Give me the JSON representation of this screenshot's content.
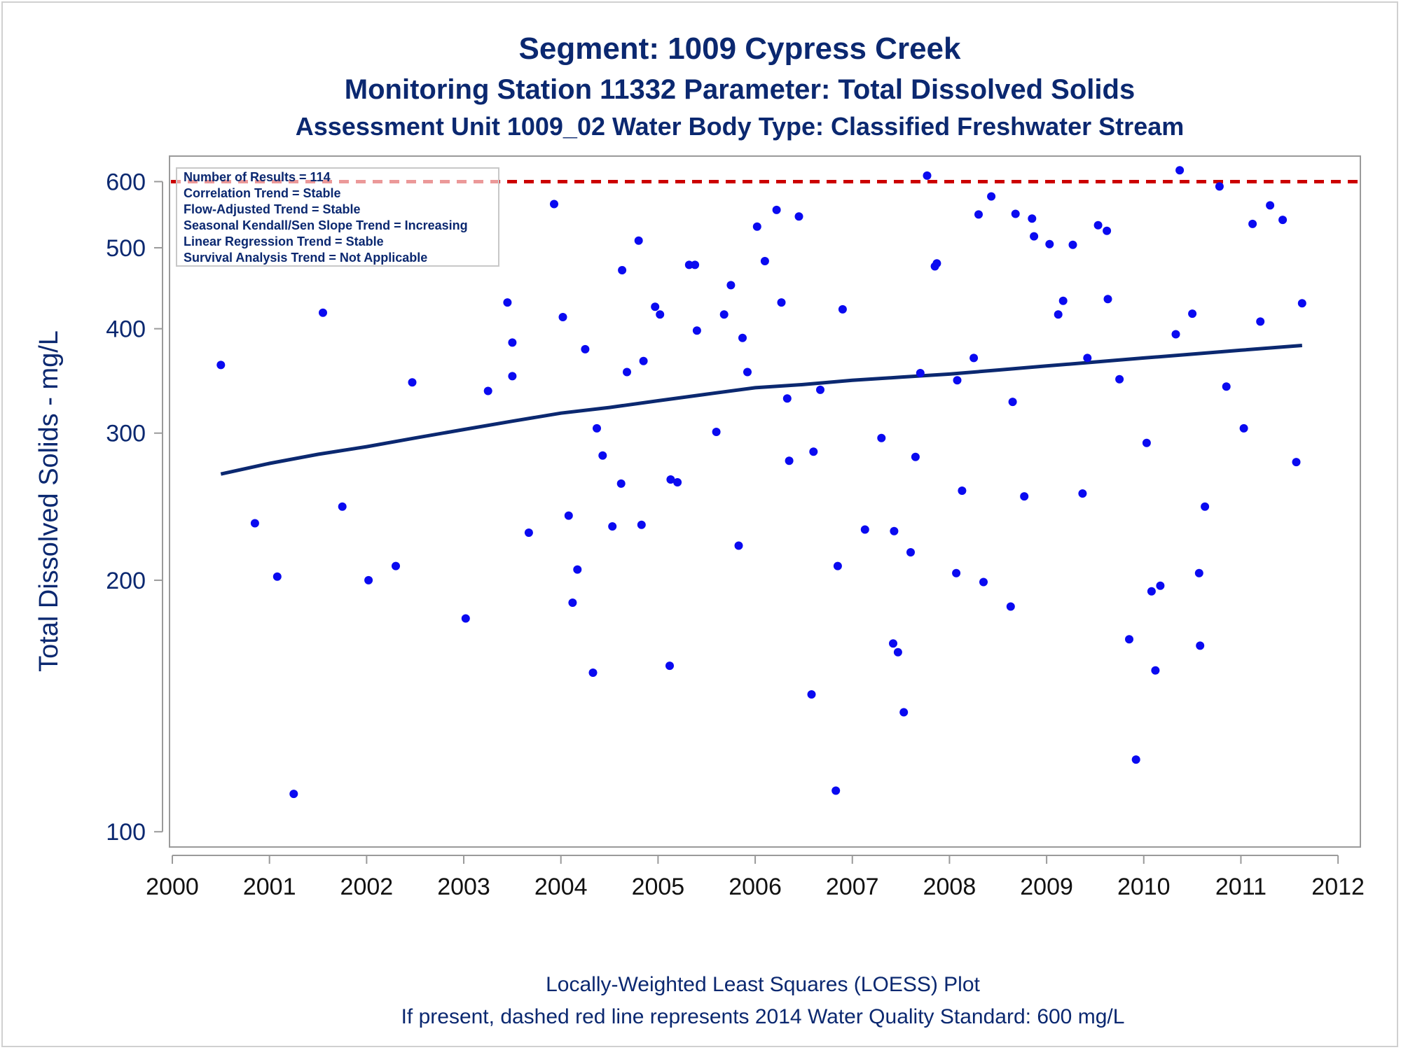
{
  "titles": {
    "line1": "Segment: 1009  Cypress Creek",
    "line2": "Monitoring Station 11332 Parameter: Total Dissolved Solids",
    "line3": "Assessment Unit 1009_02   Water Body Type: Classified Freshwater Stream"
  },
  "stats_box": [
    "Number of Results = 114",
    "Correlation Trend = Stable",
    "Flow-Adjusted Trend = Stable",
    "Seasonal Kendall/Sen Slope Trend = Increasing",
    "Linear Regression Trend = Stable",
    "Survival Analysis Trend = Not Applicable"
  ],
  "footer": {
    "line1": "Locally-Weighted Least Squares (LOESS) Plot",
    "line2": "If present, dashed red line represents 2014 Water Quality Standard: 600   mg/L"
  },
  "colors": {
    "points": "#0a0af0",
    "loess": "#0b2870",
    "standard": "#cc0000",
    "text": "#0b2870",
    "axis": "#9a9a9a"
  },
  "chart_data": {
    "type": "scatter",
    "xlabel": "",
    "ylabel": "Total Dissolved Solids - mg/L",
    "x_scale": "linear",
    "y_scale": "log",
    "xlim": [
      2000,
      2012.1
    ],
    "ylim": [
      97,
      640
    ],
    "x_ticks": [
      2000,
      2001,
      2002,
      2003,
      2004,
      2005,
      2006,
      2007,
      2008,
      2009,
      2010,
      2011,
      2012
    ],
    "y_ticks": [
      100,
      200,
      300,
      400,
      500,
      600
    ],
    "standard": {
      "value": 600,
      "style": "dashed"
    },
    "legend": "top-left",
    "series": [
      {
        "type": "scatter",
        "points": [
          [
            2000.5,
            362
          ],
          [
            2000.85,
            234
          ],
          [
            2001.08,
            202
          ],
          [
            2001.25,
            111
          ],
          [
            2001.55,
            418
          ],
          [
            2001.75,
            245
          ],
          [
            2002.02,
            200
          ],
          [
            2002.3,
            208
          ],
          [
            2002.47,
            345
          ],
          [
            2003.02,
            180
          ],
          [
            2003.25,
            337
          ],
          [
            2003.45,
            430
          ],
          [
            2003.5,
            385
          ],
          [
            2003.5,
            351
          ],
          [
            2003.67,
            228
          ],
          [
            2003.93,
            564
          ],
          [
            2004.02,
            413
          ],
          [
            2004.08,
            239
          ],
          [
            2004.12,
            188
          ],
          [
            2004.17,
            206
          ],
          [
            2004.25,
            378
          ],
          [
            2004.33,
            155
          ],
          [
            2004.37,
            304
          ],
          [
            2004.43,
            282
          ],
          [
            2004.53,
            232
          ],
          [
            2004.62,
            261
          ],
          [
            2004.63,
            470
          ],
          [
            2004.68,
            355
          ],
          [
            2004.8,
            510
          ],
          [
            2004.83,
            233
          ],
          [
            2004.85,
            366
          ],
          [
            2004.97,
            425
          ],
          [
            2005.02,
            416
          ],
          [
            2005.12,
            158
          ],
          [
            2005.13,
            264
          ],
          [
            2005.2,
            262
          ],
          [
            2005.32,
            477
          ],
          [
            2005.38,
            477
          ],
          [
            2005.4,
            398
          ],
          [
            2005.6,
            301
          ],
          [
            2005.68,
            416
          ],
          [
            2005.75,
            451
          ],
          [
            2005.83,
            220
          ],
          [
            2005.87,
            390
          ],
          [
            2005.92,
            355
          ],
          [
            2006.02,
            530
          ],
          [
            2006.1,
            482
          ],
          [
            2006.22,
            555
          ],
          [
            2006.27,
            430
          ],
          [
            2006.33,
            330
          ],
          [
            2006.35,
            278
          ],
          [
            2006.45,
            545
          ],
          [
            2006.58,
            146
          ],
          [
            2006.6,
            285
          ],
          [
            2006.67,
            338
          ],
          [
            2006.83,
            112
          ],
          [
            2006.85,
            208
          ],
          [
            2006.9,
            422
          ],
          [
            2007.13,
            230
          ],
          [
            2007.3,
            296
          ],
          [
            2007.42,
            168
          ],
          [
            2007.43,
            229
          ],
          [
            2007.47,
            164
          ],
          [
            2007.53,
            139
          ],
          [
            2007.6,
            216
          ],
          [
            2007.65,
            281
          ],
          [
            2007.7,
            354
          ],
          [
            2007.77,
            610
          ],
          [
            2007.85,
            475
          ],
          [
            2007.87,
            479
          ],
          [
            2008.07,
            204
          ],
          [
            2008.08,
            347
          ],
          [
            2008.13,
            256
          ],
          [
            2008.25,
            369
          ],
          [
            2008.3,
            548
          ],
          [
            2008.35,
            199
          ],
          [
            2008.43,
            576
          ],
          [
            2008.63,
            186
          ],
          [
            2008.65,
            327
          ],
          [
            2008.68,
            549
          ],
          [
            2008.77,
            252
          ],
          [
            2008.85,
            542
          ],
          [
            2008.87,
            516
          ],
          [
            2009.03,
            505
          ],
          [
            2009.12,
            416
          ],
          [
            2009.17,
            432
          ],
          [
            2009.27,
            504
          ],
          [
            2009.37,
            254
          ],
          [
            2009.42,
            369
          ],
          [
            2009.53,
            532
          ],
          [
            2009.62,
            524
          ],
          [
            2009.63,
            434
          ],
          [
            2009.75,
            348
          ],
          [
            2009.85,
            170
          ],
          [
            2009.92,
            122
          ],
          [
            2010.03,
            292
          ],
          [
            2010.08,
            194
          ],
          [
            2010.12,
            156
          ],
          [
            2010.17,
            197
          ],
          [
            2010.33,
            394
          ],
          [
            2010.37,
            619
          ],
          [
            2010.5,
            417
          ],
          [
            2010.57,
            204
          ],
          [
            2010.58,
            167
          ],
          [
            2010.63,
            245
          ],
          [
            2010.78,
            592
          ],
          [
            2010.85,
            341
          ],
          [
            2011.03,
            304
          ],
          [
            2011.12,
            534
          ],
          [
            2011.2,
            408
          ],
          [
            2011.3,
            562
          ],
          [
            2011.43,
            540
          ],
          [
            2011.57,
            277
          ],
          [
            2011.63,
            429
          ]
        ]
      },
      {
        "type": "line",
        "points": [
          [
            2000.5,
            268
          ],
          [
            2001,
            276
          ],
          [
            2001.5,
            283
          ],
          [
            2002,
            289
          ],
          [
            2002.5,
            296
          ],
          [
            2003,
            303
          ],
          [
            2003.5,
            310
          ],
          [
            2004,
            317
          ],
          [
            2004.5,
            322
          ],
          [
            2005,
            328
          ],
          [
            2005.5,
            334
          ],
          [
            2006,
            340
          ],
          [
            2006.5,
            343
          ],
          [
            2007,
            347
          ],
          [
            2007.5,
            350
          ],
          [
            2008,
            353
          ],
          [
            2008.5,
            357
          ],
          [
            2009,
            361
          ],
          [
            2009.5,
            365
          ],
          [
            2010,
            369
          ],
          [
            2010.5,
            373
          ],
          [
            2011,
            377
          ],
          [
            2011.63,
            382
          ]
        ]
      }
    ]
  }
}
